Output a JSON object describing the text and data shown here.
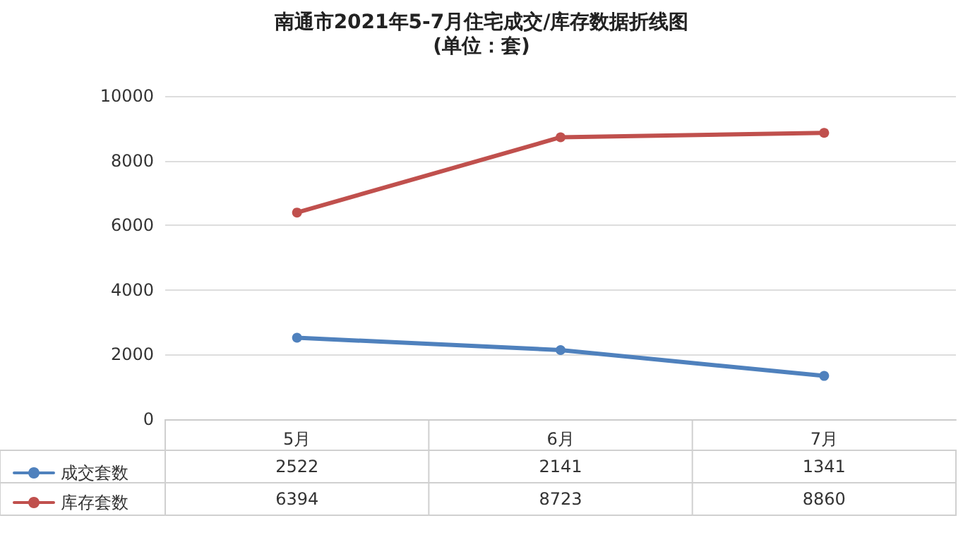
{
  "chart_data": {
    "type": "line",
    "title": "南通市2021年5-7月住宅成交/库存数据折线图",
    "subtitle": "(单位：套)",
    "categories": [
      "5月",
      "6月",
      "7月"
    ],
    "series": [
      {
        "name": "成交套数",
        "color": "#4f81bd",
        "values": [
          2522,
          2141,
          1341
        ]
      },
      {
        "name": "库存套数",
        "color": "#c0504d",
        "values": [
          6394,
          8723,
          8860
        ]
      }
    ],
    "ylim": [
      0,
      10000
    ],
    "yticks": [
      0,
      2000,
      4000,
      6000,
      8000,
      10000
    ],
    "grid": "y",
    "legend": "bottom left",
    "marker": "circle",
    "line_style": "solid",
    "data_labels": true
  }
}
